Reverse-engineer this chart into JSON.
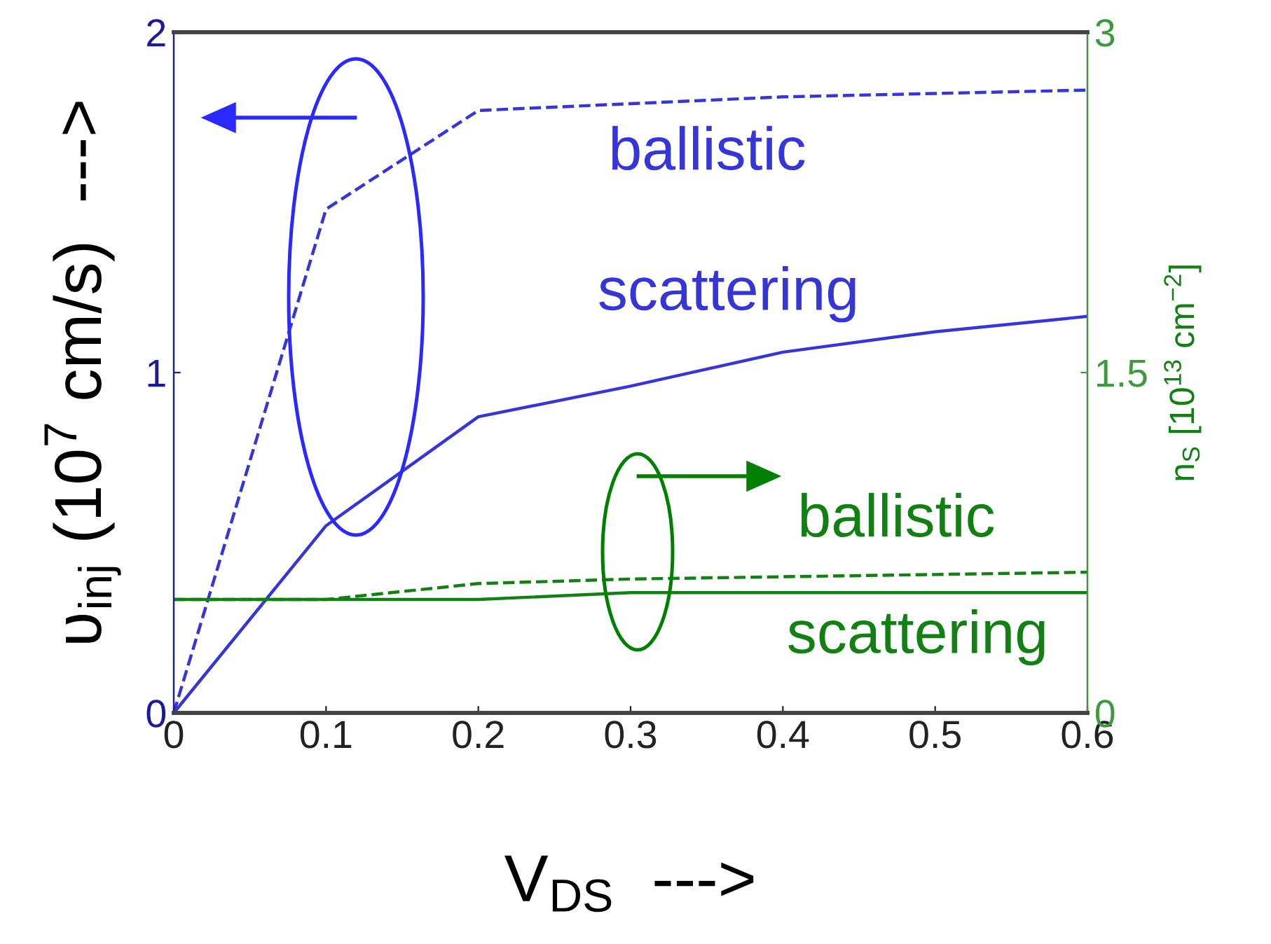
{
  "chart_data": {
    "type": "line",
    "xlabel": "V$_{DS}$  --->",
    "ylabel": "ʋ$_{inj}$ (10$^{7}$ cm/s)  --->",
    "y2label": "n$_{S}$ [10$^{13}$ cm$^{−2}$]",
    "x": [
      0,
      0.1,
      0.2,
      0.3,
      0.4,
      0.5,
      0.6
    ],
    "series": [
      {
        "name": "ballistic",
        "color": "#3535d8",
        "line_style": "dashed",
        "values": [
          0,
          1.48,
          1.77,
          1.79,
          1.81,
          1.82,
          1.83
        ]
      },
      {
        "name": "scattering",
        "color": "#3535d8",
        "line_style": "solid",
        "values": [
          0,
          0.55,
          0.87,
          0.96,
          1.06,
          1.12,
          1.165
        ]
      },
      {
        "name": "ballistic",
        "color": "#128012",
        "line_style": "dashed",
        "axis": "y2",
        "values": [
          0.5,
          0.5,
          0.57,
          0.59,
          0.6,
          0.61,
          0.62
        ]
      },
      {
        "name": "scattering",
        "color": "#128012",
        "line_style": "solid",
        "axis": "y2",
        "values": [
          0.5,
          0.5,
          0.5,
          0.53,
          0.53,
          0.53,
          0.53
        ]
      }
    ],
    "xlim": [
      0,
      0.6
    ],
    "xticks": [
      0,
      0.1,
      0.2,
      0.3,
      0.4,
      0.5,
      0.6
    ],
    "ylim": [
      0,
      2
    ],
    "yticks": [
      0,
      1,
      2
    ],
    "y2lim": [
      0,
      3
    ],
    "y2ticks": [
      0,
      1.5,
      3
    ],
    "grid": false,
    "legend": false,
    "marker": "none"
  }
}
